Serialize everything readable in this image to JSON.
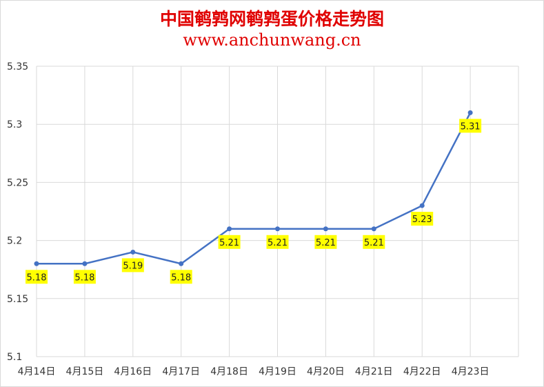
{
  "chart_data": {
    "type": "line",
    "title": "中国鹌鹑网鹌鹑蛋价格走势图",
    "subtitle": "www.anchunwang.cn",
    "xlabel": "",
    "ylabel": "",
    "categories": [
      "4月14日",
      "4月15日",
      "4月16日",
      "4月17日",
      "4月18日",
      "4月19日",
      "4月20日",
      "4月21日",
      "4月22日",
      "4月23日"
    ],
    "series": [
      {
        "values": [
          5.18,
          5.18,
          5.19,
          5.18,
          5.21,
          5.21,
          5.21,
          5.21,
          5.23,
          5.31
        ]
      }
    ],
    "data_labels": [
      "5.18",
      "5.18",
      "5.19",
      "5.18",
      "5.21",
      "5.21",
      "5.21",
      "5.21",
      "5.23",
      "5.31"
    ],
    "ylim": [
      5.1,
      5.35
    ],
    "yticks": [
      "5.1",
      "5.15",
      "5.2",
      "5.25",
      "5.3",
      "5.35"
    ],
    "grid": true,
    "line_color": "#4472c4",
    "label_bg": "#ffff00",
    "title_color": "#e00000"
  }
}
